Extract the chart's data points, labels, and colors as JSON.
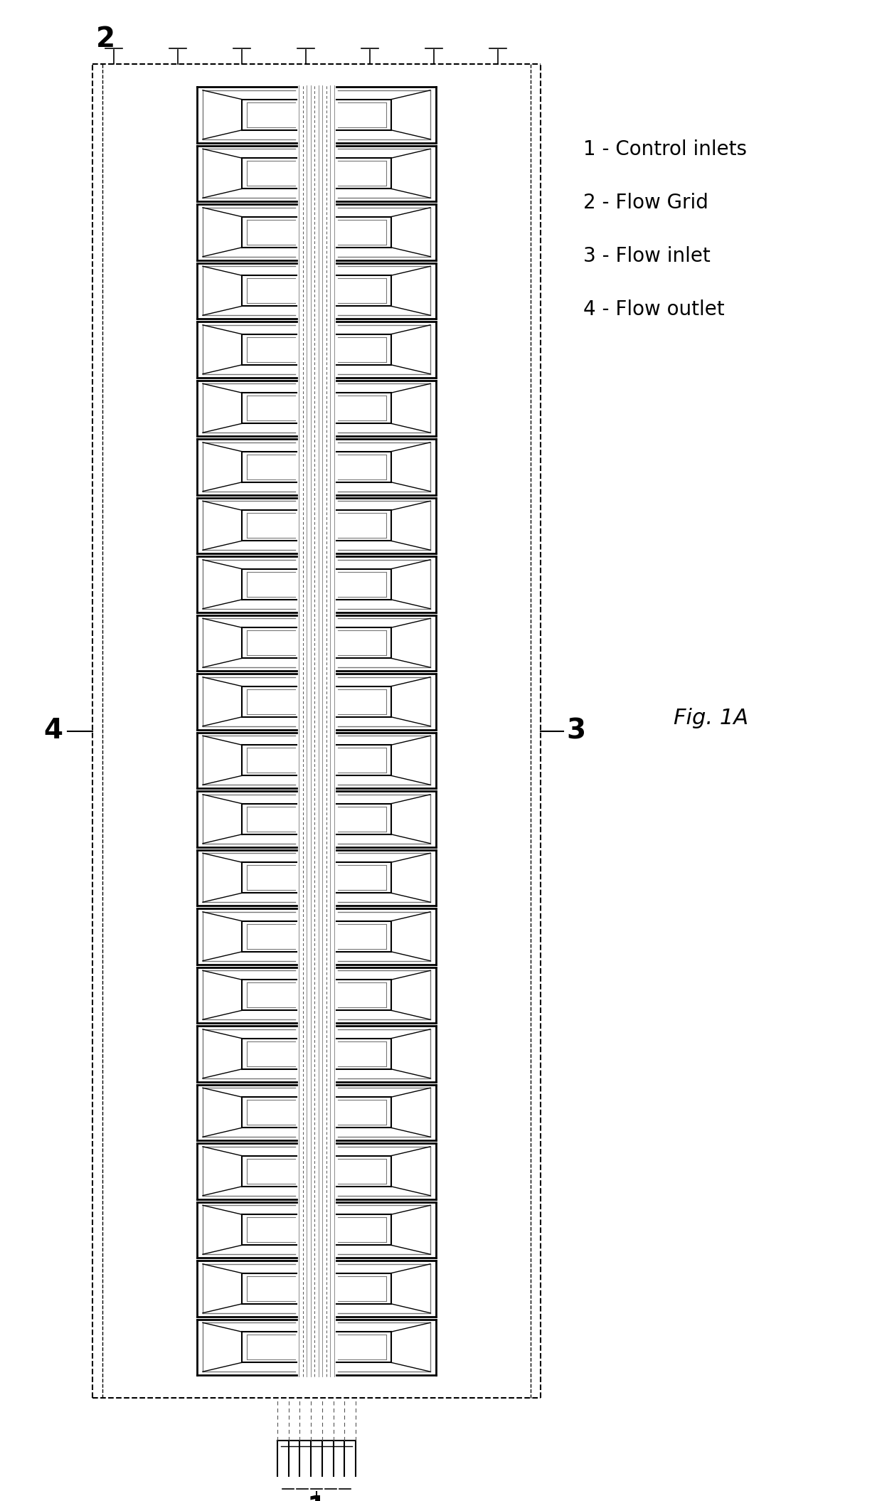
{
  "fig_label": "Fig. 1A",
  "legend": [
    "1 - Control inlets",
    "2 - Flow Grid",
    "3 - Flow inlet",
    "4 - Flow outlet"
  ],
  "bg_color": "#ffffff",
  "line_color": "#000000",
  "gray_color": "#777777",
  "n_chambers": 22,
  "fig_width": 12.4,
  "fig_height": 21.1
}
